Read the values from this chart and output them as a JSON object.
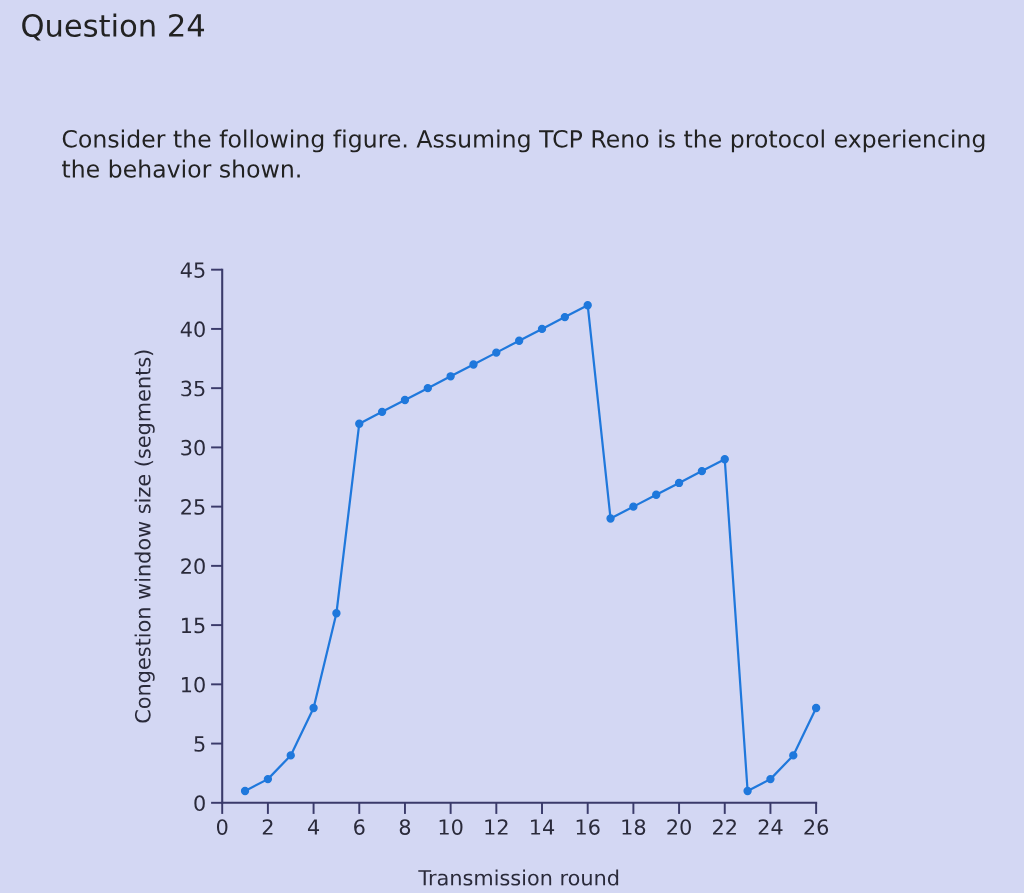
{
  "chart_data": {
    "type": "line",
    "title": "Question 24",
    "subtitle": "Consider the following figure. Assuming TCP Reno is the protocol experiencing the behavior shown.",
    "xlabel": "Transmission round",
    "ylabel": "Congestion window size (segments)",
    "x": [
      1,
      2,
      3,
      4,
      5,
      6,
      7,
      8,
      9,
      10,
      11,
      12,
      13,
      14,
      15,
      16,
      17,
      18,
      19,
      20,
      21,
      22,
      23,
      24,
      25,
      26
    ],
    "series": [
      {
        "color": "#1f78dc",
        "values": [
          1,
          2,
          4,
          8,
          16,
          32,
          33,
          34,
          35,
          36,
          37,
          38,
          39,
          40,
          41,
          42,
          24,
          25,
          26,
          27,
          28,
          29,
          1,
          2,
          4,
          8
        ]
      }
    ],
    "xlim": [
      0,
      26
    ],
    "ylim": [
      0,
      45
    ],
    "xticks": [
      0,
      2,
      4,
      6,
      8,
      10,
      12,
      14,
      16,
      18,
      20,
      22,
      24,
      26
    ],
    "yticks": [
      0,
      5,
      10,
      15,
      20,
      25,
      30,
      35,
      40,
      45
    ],
    "marker": "circle",
    "line_style": "solid"
  }
}
